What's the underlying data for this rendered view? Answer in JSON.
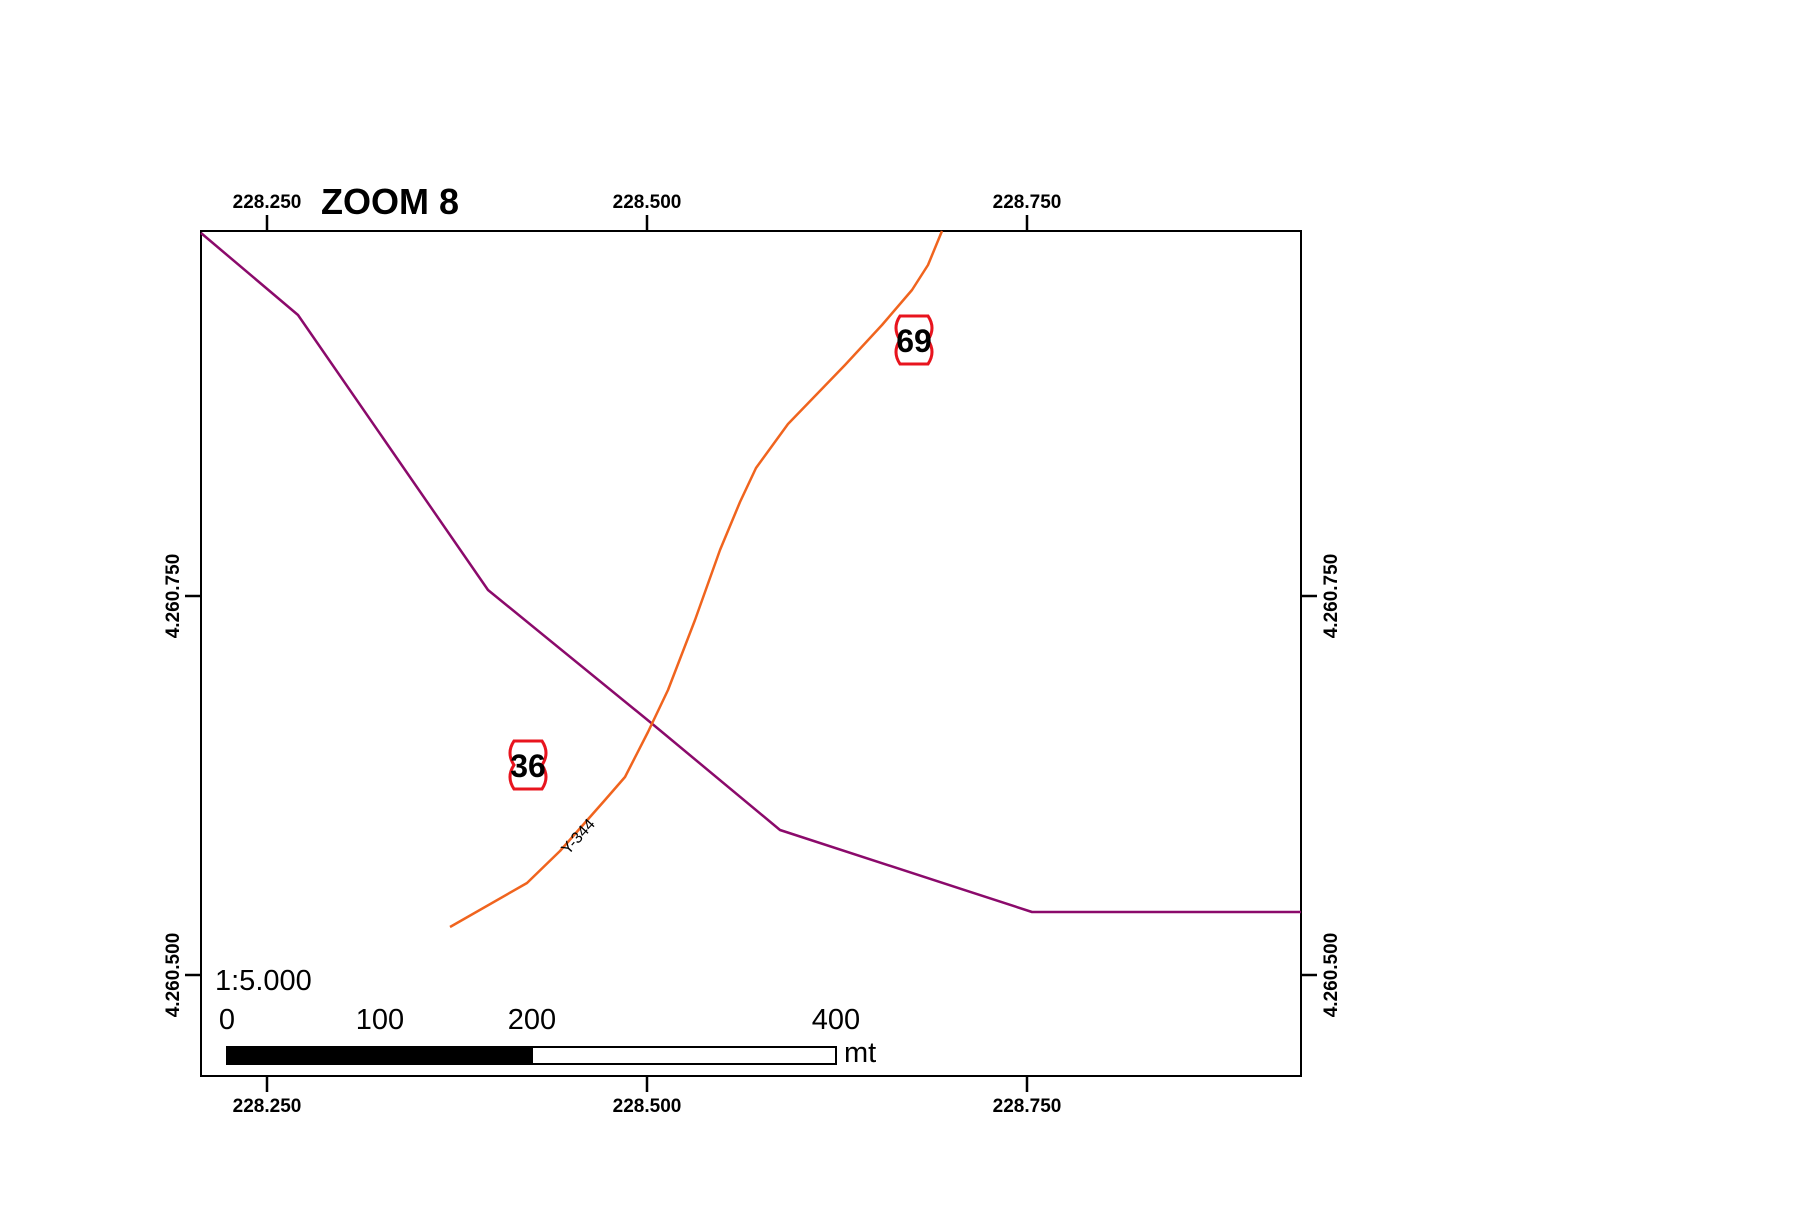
{
  "title": "ZOOM 8",
  "scale_text": "1:5.000",
  "scalebar": {
    "unit": "mt",
    "labels": [
      "0",
      "100",
      "200",
      "400"
    ]
  },
  "ticks": {
    "x": [
      "228.250",
      "228.500",
      "228.750"
    ],
    "y": [
      "4.260.750",
      "4.260.500"
    ]
  },
  "roads": [
    {
      "name": "purple-road",
      "color": "#8b0a6b"
    },
    {
      "name": "orange-road",
      "color": "#f0641e",
      "label": "Y-344"
    }
  ],
  "shields": [
    {
      "number": "69",
      "color": "#e8141e"
    },
    {
      "number": "36",
      "color": "#e8141e"
    }
  ]
}
